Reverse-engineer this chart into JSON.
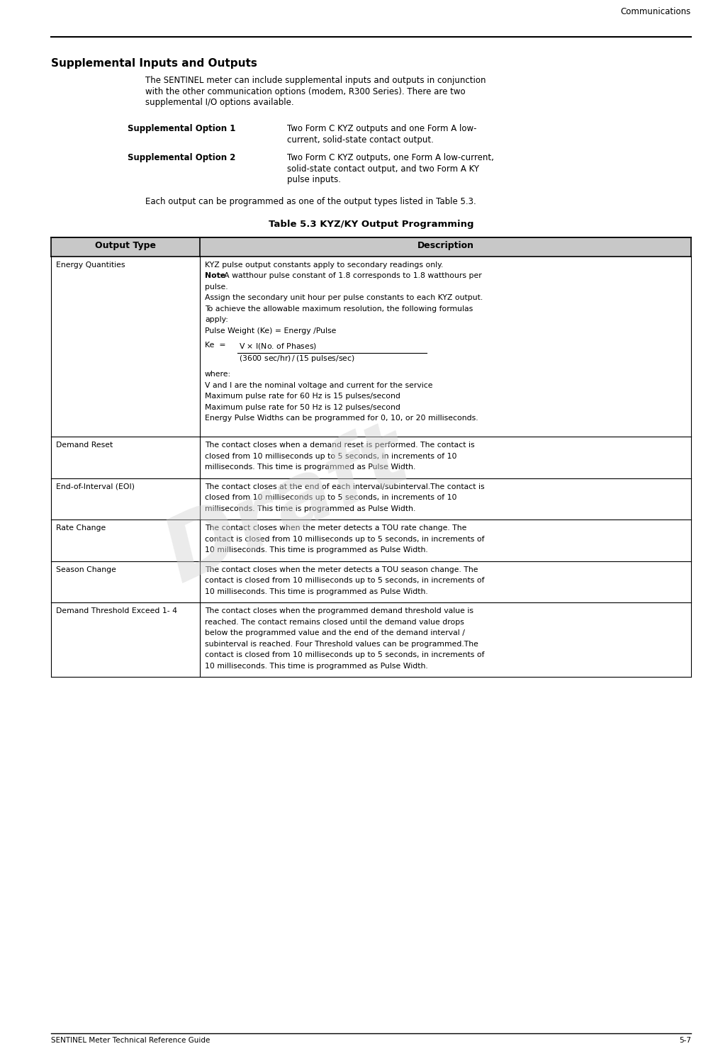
{
  "page_header_right": "Communications",
  "page_footer_left": "SENTINEL Meter Technical Reference Guide",
  "page_footer_right": "5-7",
  "section_title": "Supplemental Inputs and Outputs",
  "intro_lines": [
    "The SENTINEL meter can include supplemental inputs and outputs in conjunction",
    "with the other communication options (modem, R300 Series). There are two",
    "supplemental I/O options available."
  ],
  "options": [
    {
      "label": "Supplemental Option 1",
      "text_lines": [
        "Two Form C KYZ outputs and one Form A low-",
        "current, solid-state contact output."
      ]
    },
    {
      "label": "Supplemental Option 2",
      "text_lines": [
        "Two Form C KYZ outputs, one Form A low-current,",
        "solid-state contact output, and two Form A KY",
        "pulse inputs."
      ]
    }
  ],
  "pre_table_text": "Each output can be programmed as one of the output types listed in Table 5.3.",
  "table_title": "Table 5.3 KYZ/KY Output Programming",
  "table_header": [
    "Output Type",
    "Description"
  ],
  "energy_desc": [
    {
      "kind": "normal",
      "text": "KYZ pulse output constants apply to secondary readings only."
    },
    {
      "kind": "note",
      "bold": "Note",
      "rest": ": A watthour pulse constant of 1.8 corresponds to 1.8 watthours per"
    },
    {
      "kind": "normal",
      "text": "pulse."
    },
    {
      "kind": "normal",
      "text": "Assign the secondary unit hour per pulse constants to each KYZ output."
    },
    {
      "kind": "normal",
      "text": "To achieve the allowable maximum resolution, the following formulas"
    },
    {
      "kind": "normal",
      "text": "apply:"
    },
    {
      "kind": "normal",
      "text": "Pulse Weight (Ke) = Energy /Pulse"
    },
    {
      "kind": "formula"
    },
    {
      "kind": "normal",
      "text": "where:"
    },
    {
      "kind": "normal",
      "text": "V and I are the nominal voltage and current for the service"
    },
    {
      "kind": "normal",
      "text": "Maximum pulse rate for 60 Hz is 15 pulses/second"
    },
    {
      "kind": "normal",
      "text": "Maximum pulse rate for 50 Hz is 12 pulses/second"
    },
    {
      "kind": "normal",
      "text": "Energy Pulse Widths can be programmed for 0, 10, or 20 milliseconds."
    }
  ],
  "table_rows": [
    {
      "type": "Demand Reset",
      "desc_lines": [
        "The contact closes when a demand reset is performed. The contact is",
        "closed from 10 milliseconds up to 5 seconds, in increments of 10",
        "milliseconds. This time is programmed as Pulse Width."
      ]
    },
    {
      "type": "End-of-Interval (EOI)",
      "desc_lines": [
        "The contact closes at the end of each interval/subinterval.The contact is",
        "closed from 10 milliseconds up to 5 seconds, in increments of 10",
        "milliseconds. This time is programmed as Pulse Width."
      ]
    },
    {
      "type": "Rate Change",
      "desc_lines": [
        "The contact closes when the meter detects a TOU rate change. The",
        "contact is closed from 10 milliseconds up to 5 seconds, in increments of",
        "10 milliseconds. This time is programmed as Pulse Width."
      ]
    },
    {
      "type": "Season Change",
      "desc_lines": [
        "The contact closes when the meter detects a TOU season change. The",
        "contact is closed from 10 milliseconds up to 5 seconds, in increments of",
        "10 milliseconds. This time is programmed as Pulse Width."
      ]
    },
    {
      "type": "Demand Threshold Exceed 1- 4",
      "desc_lines": [
        "The contact closes when the programmed demand threshold value is",
        "reached. The contact remains closed until the demand value drops",
        "below the programmed value and the end of the demand interval /",
        "subinterval is reached. Four Threshold values can be programmed.The",
        "contact is closed from 10 milliseconds up to 5 seconds, in increments of",
        "10 milliseconds. This time is programmed as Pulse Width."
      ]
    }
  ],
  "draft_watermark": "Draft",
  "bg": "#ffffff",
  "header_bg": "#c8c8c8"
}
